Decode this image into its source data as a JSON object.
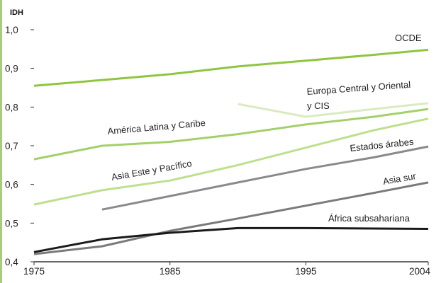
{
  "chart_data": {
    "type": "line",
    "title": "",
    "xlabel": "",
    "ylabel": "IDH",
    "xlim": [
      1975,
      2004
    ],
    "ylim": [
      0.4,
      1.0
    ],
    "x_ticks": [
      "1975",
      "1985",
      "1995",
      "2004"
    ],
    "y_ticks": [
      "0,4",
      "0,5",
      "0,6",
      "0,7",
      "0,8",
      "0,9",
      "1,0"
    ],
    "grid": false,
    "legend": "inline labels",
    "series": [
      {
        "name": "OCDE",
        "color": "#8dc63f",
        "x": [
          1975,
          1980,
          1985,
          1990,
          1995,
          2000,
          2004
        ],
        "y": [
          0.855,
          0.87,
          0.885,
          0.905,
          0.92,
          0.935,
          0.948
        ]
      },
      {
        "name": "Europa Central y Oriental y CIS",
        "color": "#d9ebbf",
        "x": [
          1990,
          1995,
          2000,
          2004
        ],
        "y": [
          0.808,
          0.775,
          0.795,
          0.81
        ]
      },
      {
        "name": "América Latina y Caribe",
        "color": "#a3d06a",
        "x": [
          1975,
          1980,
          1985,
          1990,
          1995,
          2000,
          2004
        ],
        "y": [
          0.665,
          0.7,
          0.71,
          0.73,
          0.755,
          0.775,
          0.795
        ]
      },
      {
        "name": "Asia Este y Pacífico",
        "color": "#bde08e",
        "x": [
          1975,
          1980,
          1985,
          1990,
          1995,
          2000,
          2004
        ],
        "y": [
          0.548,
          0.585,
          0.61,
          0.65,
          0.695,
          0.74,
          0.77
        ]
      },
      {
        "name": "Estados árabes",
        "color": "#8a8a8a",
        "x": [
          1980,
          1985,
          1990,
          1995,
          2000,
          2004
        ],
        "y": [
          0.535,
          0.57,
          0.605,
          0.64,
          0.67,
          0.698
        ]
      },
      {
        "name": "Asia sur",
        "color": "#7a7a7a",
        "x": [
          1975,
          1980,
          1985,
          1990,
          1995,
          2000,
          2004
        ],
        "y": [
          0.42,
          0.44,
          0.48,
          0.512,
          0.545,
          0.578,
          0.605
        ]
      },
      {
        "name": "África subsahariana",
        "color": "#1a1a1a",
        "x": [
          1975,
          1980,
          1985,
          1990,
          1995,
          2000,
          2004
        ],
        "y": [
          0.425,
          0.458,
          0.475,
          0.487,
          0.487,
          0.486,
          0.485
        ]
      }
    ]
  },
  "labels": {
    "ocde": "OCDE",
    "europa_line1": "Europa Central y Oriental",
    "europa_line2": "y CIS",
    "america": "América Latina y Caribe",
    "asia_este": "Asia Este y Pacífico",
    "arabes": "Estados árabes",
    "asia_sur": "Asia sur",
    "africa": "África subsahariana"
  },
  "colors": {
    "left_border": "#a8cc7a",
    "axis": "#333333"
  }
}
